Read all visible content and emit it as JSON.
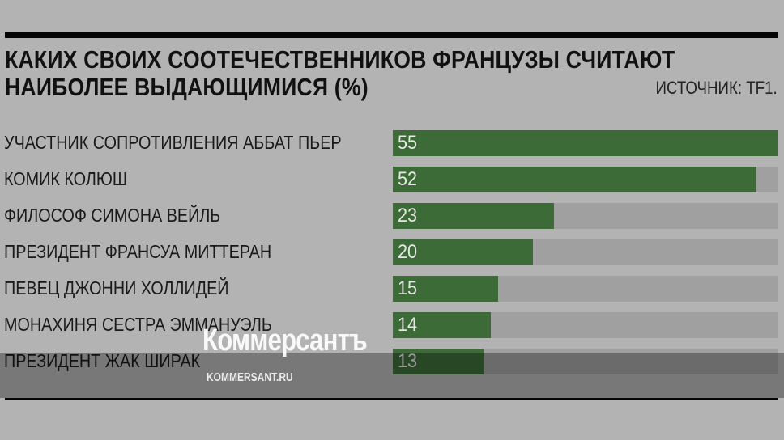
{
  "chart_data": {
    "type": "bar",
    "orientation": "horizontal",
    "title": "КАКИХ СВОИХ СООТЕЧЕСТВЕННИКОВ ФРАНЦУЗЫ СЧИТАЮТ НАИБОЛЕЕ ВЫДАЮЩИМИСЯ (%)",
    "title_lines": [
      "КАКИХ СВОИХ СООТЕЧЕСТВЕННИКОВ ФРАНЦУЗЫ СЧИТАЮТ",
      "НАИБОЛЕЕ ВЫДАЮЩИМИСЯ (%)"
    ],
    "source": "ИСТОЧНИК: TF1.",
    "categories": [
      "УЧАСТНИК СОПРОТИВЛЕНИЯ АББАТ ПЬЕР",
      "КОМИК КОЛЮШ",
      "ФИЛОСОФ СИМОНА ВЕЙЛЬ",
      "ПРЕЗИДЕНТ ФРАНСУА МИТТЕРАН",
      "ПЕВЕЦ ДЖОННИ ХОЛЛИДЕЙ",
      "МОНАХИНЯ СЕСТРА ЭММАНУЭЛЬ",
      "ПРЕЗИДЕНТ ЖАК ШИРАК"
    ],
    "values": [
      55,
      52,
      23,
      20,
      15,
      14,
      13
    ],
    "xlim": [
      0,
      55
    ],
    "grid": false,
    "colors": {
      "bar": "#3d6b37",
      "track": "#a0a0a0",
      "background": "#b3b3b3"
    }
  },
  "watermark": {
    "brand": "Коммерсантъ",
    "site": "KOMMERSANT.RU"
  }
}
